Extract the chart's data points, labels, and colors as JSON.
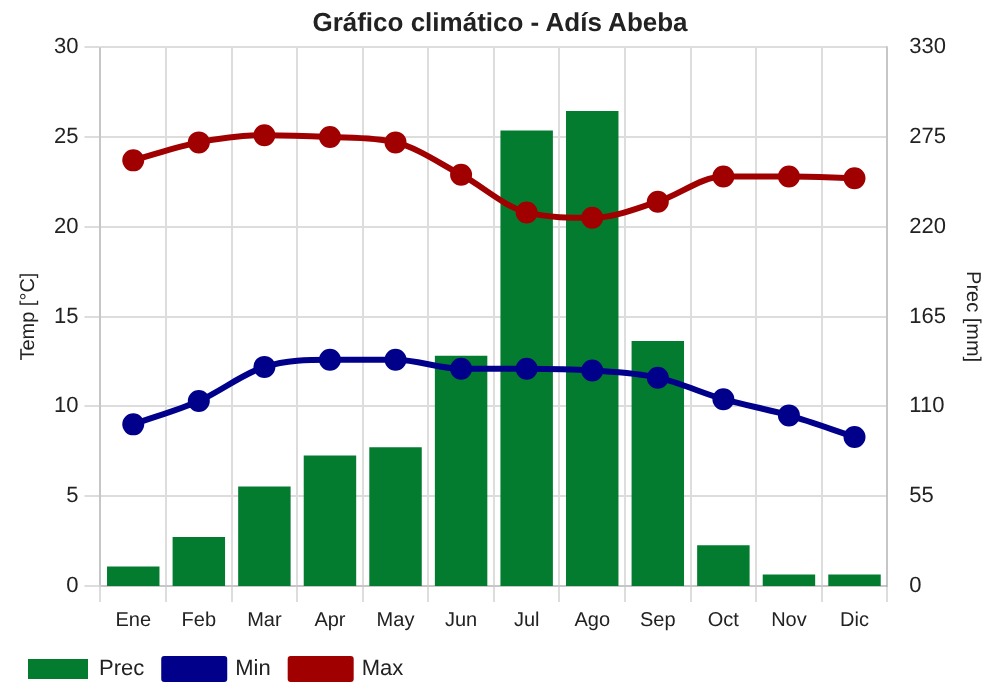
{
  "chart_data": {
    "type": "bar",
    "title": "Gráfico climático - Adís Abeba",
    "ylabel": "Temp [°C]",
    "y2label": "Prec [mm]",
    "categories": [
      "Ene",
      "Feb",
      "Mar",
      "Apr",
      "May",
      "Jun",
      "Jul",
      "Ago",
      "Sep",
      "Oct",
      "Nov",
      "Dic"
    ],
    "series": [
      {
        "name": "Prec",
        "axis": "y2",
        "color": "#047c2f",
        "values": [
          12,
          30,
          61,
          80,
          85,
          141,
          279,
          291,
          150,
          25,
          7,
          7
        ]
      },
      {
        "name": "Min",
        "type": "line",
        "color": "#00008b",
        "values": [
          9.0,
          10.3,
          12.2,
          12.6,
          12.6,
          12.1,
          12.1,
          12.0,
          11.6,
          10.4,
          9.5,
          8.3
        ]
      },
      {
        "name": "Max",
        "type": "line",
        "color": "#a00000",
        "values": [
          23.7,
          24.7,
          25.1,
          25.0,
          24.7,
          22.9,
          20.8,
          20.5,
          21.4,
          22.8,
          22.8,
          22.7
        ]
      }
    ],
    "ylim": [
      0,
      30
    ],
    "yticks": [
      0,
      5,
      10,
      15,
      20,
      25,
      30
    ],
    "y2lim": [
      0,
      330
    ],
    "y2ticks": [
      0,
      55,
      110,
      165,
      220,
      275,
      330
    ],
    "grid": true,
    "legend": "bottom left",
    "marker": "circle"
  }
}
